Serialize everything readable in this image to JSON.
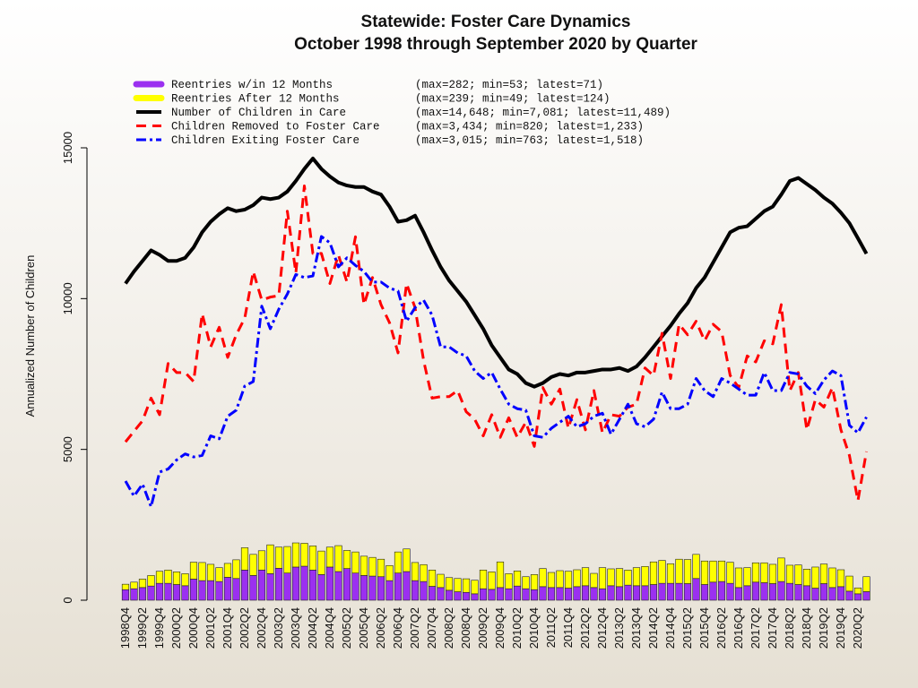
{
  "chart_data": {
    "type": "combo",
    "title": "Statewide: Foster Care Dynamics",
    "subtitle": "October 1998 through September 2020 by Quarter",
    "y_label": "Annualized Number of Children",
    "ylim": [
      0,
      15000
    ],
    "yticks": [
      0,
      5000,
      10000,
      15000
    ],
    "categories": [
      "1998Q4",
      null,
      "1999Q2",
      null,
      "1999Q4",
      null,
      "2000Q2",
      null,
      "2000Q4",
      null,
      "2001Q2",
      null,
      "2001Q4",
      null,
      "2002Q2",
      null,
      "2002Q4",
      null,
      "2003Q2",
      null,
      "2003Q4",
      null,
      "2004Q2",
      null,
      "2004Q4",
      null,
      "2005Q2",
      null,
      "2005Q4",
      null,
      "2006Q2",
      null,
      "2006Q4",
      null,
      "2007Q2",
      null,
      "2007Q4",
      null,
      "2008Q2",
      null,
      "2008Q4",
      null,
      "2009Q2",
      null,
      "2009Q4",
      null,
      "2010Q2",
      null,
      "2010Q4",
      null,
      "2011Q2",
      null,
      "2011Q4",
      null,
      "2012Q2",
      null,
      "2012Q4",
      null,
      "2013Q2",
      null,
      "2013Q4",
      null,
      "2014Q2",
      null,
      "2014Q4",
      null,
      "2015Q2",
      null,
      "2015Q4",
      null,
      "2016Q2",
      null,
      "2016Q4",
      null,
      "2017Q2",
      null,
      "2017Q4",
      null,
      "2018Q2",
      null,
      "2018Q4",
      null,
      "2019Q2",
      null,
      "2019Q4",
      null,
      "2020Q2",
      null
    ],
    "series": [
      {
        "name": "Reentries w/in 12 Months",
        "stats": "(max=282; min=53; latest=71)",
        "kind": "bar",
        "color": "#9b30f0",
        "values": [
          350,
          380,
          420,
          470,
          560,
          560,
          520,
          480,
          700,
          650,
          650,
          620,
          760,
          720,
          1000,
          820,
          1000,
          880,
          1060,
          900,
          1100,
          1128,
          1000,
          850,
          1100,
          950,
          1050,
          900,
          820,
          800,
          780,
          650,
          900,
          950,
          650,
          620,
          460,
          420,
          330,
          280,
          260,
          212,
          380,
          360,
          420,
          380,
          470,
          380,
          350,
          450,
          420,
          420,
          400,
          450,
          480,
          420,
          380,
          480,
          450,
          500,
          480,
          480,
          520,
          560,
          560,
          560,
          550,
          720,
          520,
          600,
          620,
          560,
          420,
          480,
          600,
          580,
          550,
          620,
          560,
          520,
          480,
          400,
          550,
          420,
          450,
          300,
          212,
          284
        ]
      },
      {
        "name": "Reentries After 12 Months",
        "stats": "(max=239; min=49; latest=124)",
        "kind": "bar",
        "color": "#ffff00",
        "values": [
          180,
          220,
          280,
          350,
          400,
          440,
          420,
          400,
          560,
          600,
          540,
          460,
          460,
          620,
          740,
          700,
          640,
          956,
          700,
          880,
          800,
          760,
          800,
          780,
          660,
          860,
          600,
          700,
          640,
          620,
          580,
          500,
          700,
          750,
          600,
          560,
          540,
          440,
          420,
          440,
          450,
          450,
          620,
          580,
          850,
          500,
          500,
          400,
          500,
          600,
          500,
          560,
          560,
          560,
          600,
          470,
          700,
          560,
          600,
          500,
          600,
          640,
          750,
          760,
          650,
          800,
          800,
          800,
          780,
          700,
          680,
          700,
          650,
          600,
          640,
          660,
          640,
          780,
          600,
          650,
          550,
          700,
          650,
          650,
          560,
          500,
          196,
          496
        ]
      },
      {
        "name": "Number of Children in Care",
        "stats": "(max=14,648; min=7,081; latest=11,489)",
        "kind": "line",
        "color": "#000000",
        "width": 4,
        "dash": "",
        "values": [
          10500,
          10900,
          11250,
          11600,
          11450,
          11250,
          11250,
          11350,
          11700,
          12200,
          12550,
          12800,
          13000,
          12900,
          12950,
          13100,
          13350,
          13300,
          13350,
          13550,
          13900,
          14300,
          14648,
          14300,
          14050,
          13850,
          13750,
          13700,
          13700,
          13550,
          13450,
          13050,
          12550,
          12600,
          12750,
          12200,
          11600,
          11050,
          10600,
          10250,
          9900,
          9450,
          9000,
          8450,
          8050,
          7650,
          7500,
          7200,
          7081,
          7200,
          7400,
          7500,
          7450,
          7550,
          7550,
          7600,
          7650,
          7650,
          7700,
          7600,
          7750,
          8050,
          8400,
          8750,
          9100,
          9500,
          9850,
          10350,
          10700,
          11200,
          11700,
          12200,
          12350,
          12400,
          12650,
          12900,
          13050,
          13450,
          13900,
          14000,
          13800,
          13600,
          13350,
          13150,
          12850,
          12500,
          12000,
          11489
        ]
      },
      {
        "name": "Children Removed to Foster Care",
        "stats": "(max=3,434; min=820; latest=1,233)",
        "kind": "line",
        "color": "#ff0000",
        "width": 3,
        "dash": "11,7",
        "values": [
          5250,
          5600,
          5950,
          6700,
          6150,
          7850,
          7550,
          7550,
          7250,
          9500,
          8400,
          9050,
          8050,
          8800,
          9350,
          10900,
          9950,
          10050,
          10100,
          12900,
          10850,
          13736,
          11500,
          11500,
          10500,
          11450,
          10550,
          12050,
          9800,
          10700,
          9800,
          9200,
          8200,
          10500,
          9700,
          7950,
          6700,
          6750,
          6750,
          6950,
          6250,
          6000,
          5450,
          6150,
          5400,
          6050,
          5400,
          5900,
          5100,
          7050,
          6500,
          7000,
          5700,
          6650,
          5650,
          6950,
          5550,
          6150,
          6100,
          6400,
          6500,
          7700,
          7450,
          8850,
          7350,
          9150,
          8800,
          9250,
          8600,
          9150,
          8900,
          7450,
          7050,
          8100,
          7900,
          8600,
          8500,
          9800,
          6950,
          7550,
          5650,
          6650,
          6400,
          7050,
          5650,
          4800,
          3300,
          4932
        ]
      },
      {
        "name": "Children Exiting Foster Care",
        "stats": "(max=3,015; min=763; latest=1,518)",
        "kind": "line",
        "color": "#0000ff",
        "width": 3,
        "dash": "11,4,3,4",
        "values": [
          3950,
          3450,
          3850,
          3100,
          4250,
          4350,
          4650,
          4850,
          4750,
          4800,
          5450,
          5350,
          6100,
          6300,
          7100,
          7250,
          9750,
          9000,
          9650,
          10150,
          10800,
          10700,
          10750,
          12060,
          11850,
          11050,
          11350,
          11100,
          10900,
          10550,
          10550,
          10350,
          10250,
          9250,
          9700,
          9950,
          9450,
          8400,
          8400,
          8200,
          8100,
          7600,
          7350,
          7550,
          7000,
          6500,
          6350,
          6300,
          5450,
          5400,
          5700,
          5900,
          6100,
          5750,
          5850,
          6100,
          6200,
          5500,
          6000,
          6500,
          5850,
          5750,
          6000,
          6900,
          6350,
          6350,
          6500,
          7350,
          6950,
          6750,
          7350,
          7200,
          7000,
          6800,
          6800,
          7550,
          6950,
          6950,
          7550,
          7500,
          7100,
          6850,
          7300,
          7600,
          7450,
          5800,
          5550,
          6072
        ]
      }
    ]
  }
}
